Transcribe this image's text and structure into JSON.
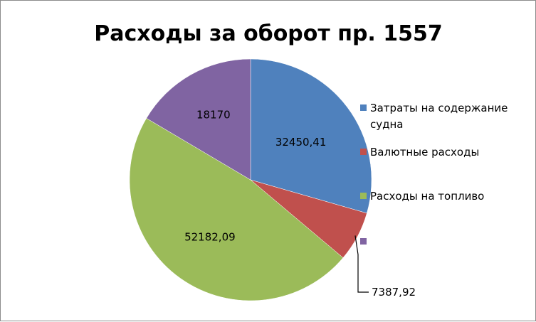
{
  "chart_data": {
    "type": "pie",
    "title": "Расходы за оборот пр. 1557",
    "legend_position": "right",
    "slices": [
      {
        "legend": [
          "Затраты на содержание",
          "судна"
        ],
        "value": 32450.41,
        "label": "32450,41",
        "color": "#4F81BD"
      },
      {
        "legend": [
          "Валютные расходы"
        ],
        "value": 7387.92,
        "label": "7387,92",
        "color": "#C0504D"
      },
      {
        "legend": [
          "Расходы на топливо"
        ],
        "value": 52182.09,
        "label": "52182,09",
        "color": "#9BBB59"
      },
      {
        "legend": [],
        "value": 18170,
        "label": "18170",
        "color": "#8064A2"
      }
    ]
  }
}
